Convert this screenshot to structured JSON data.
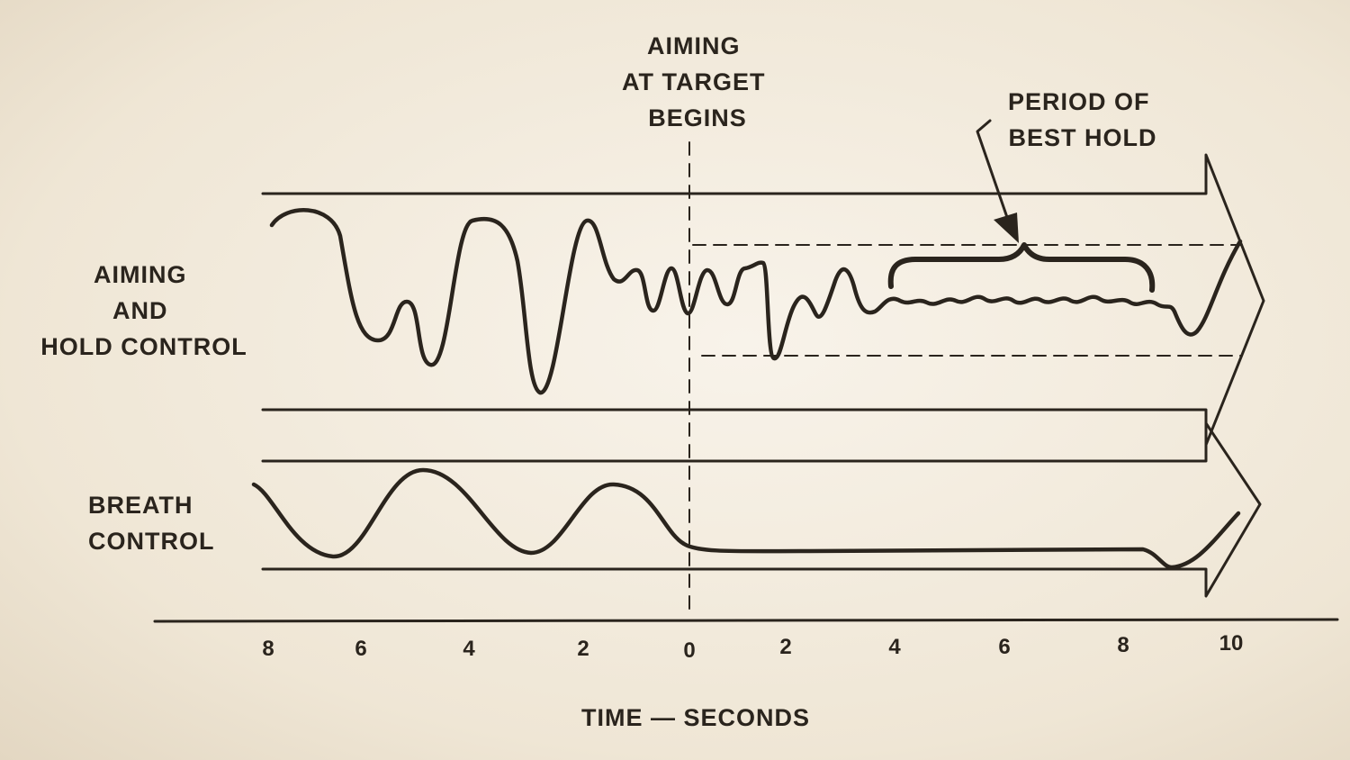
{
  "labels": {
    "aiming_begins": [
      "AIMING",
      "AT TARGET",
      "BEGINS"
    ],
    "best_hold": [
      "PERIOD OF",
      "BEST HOLD"
    ],
    "aiming_hold": [
      "AIMING",
      "AND",
      "HOLD CONTROL"
    ],
    "breath": [
      "BREATH",
      "CONTROL"
    ],
    "x_axis_title": "TIME — SECONDS"
  },
  "x_ticks": [
    "8",
    "6",
    "4",
    "2",
    "0",
    "2",
    "4",
    "6",
    "8",
    "10"
  ],
  "colors": {
    "ink": "#2a241d",
    "paper": "#f4ede0"
  }
}
